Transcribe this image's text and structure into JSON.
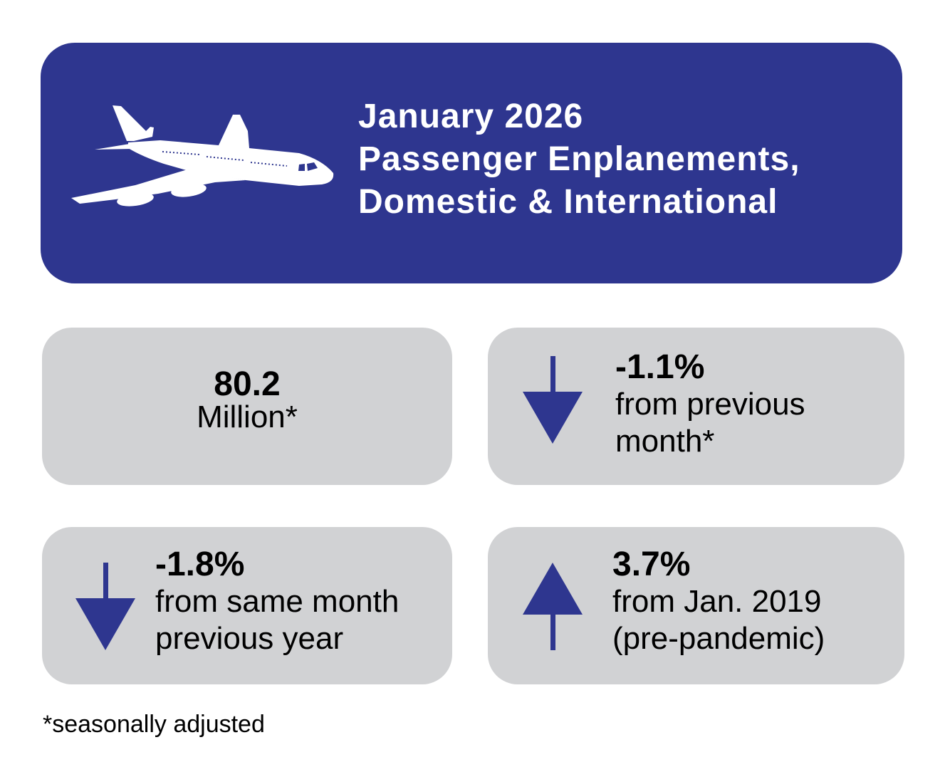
{
  "colors": {
    "brand": "#2e368f",
    "card": "#d1d2d4"
  },
  "header": {
    "icon": "airplane-icon",
    "title_lines": [
      "January 2026",
      "Passenger Enplanements,",
      "Domestic & International"
    ]
  },
  "cards": [
    {
      "value": "80.2",
      "text": [
        "Million*"
      ],
      "direction": "none"
    },
    {
      "value": "-1.1%",
      "text": [
        "from previous",
        "month*"
      ],
      "direction": "down",
      "icon": "arrow-down-icon"
    },
    {
      "value": "-1.8%",
      "text": [
        "from same month",
        "previous year"
      ],
      "direction": "down",
      "icon": "arrow-down-icon"
    },
    {
      "value": "3.7%",
      "text": [
        "from Jan. 2019",
        "(pre-pandemic)"
      ],
      "direction": "up",
      "icon": "arrow-up-icon"
    }
  ],
  "footnote": "*seasonally adjusted"
}
